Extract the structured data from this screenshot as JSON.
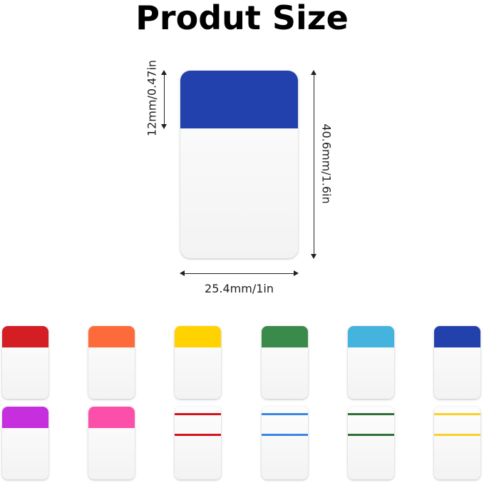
{
  "title": "Produt Size",
  "dimensions": {
    "header_height": "12mm/0.47in",
    "height": "40.6mm/1.6in",
    "width": "25.4mm/1in"
  },
  "main_tab_color": "#2341ac",
  "solid_tabs": [
    {
      "color": "#d41e24"
    },
    {
      "color": "#fd6b3a"
    },
    {
      "color": "#ffd200"
    },
    {
      "color": "#3a8a4b"
    },
    {
      "color": "#44b3de"
    },
    {
      "color": "#2341ac"
    },
    {
      "color": "#c62fdd"
    },
    {
      "color": "#fb4fa9"
    }
  ],
  "lined_tabs": [
    {
      "color": "#d0141c"
    },
    {
      "color": "#3a86e4"
    },
    {
      "color": "#2f6f37"
    },
    {
      "color": "#f9d12a"
    }
  ]
}
